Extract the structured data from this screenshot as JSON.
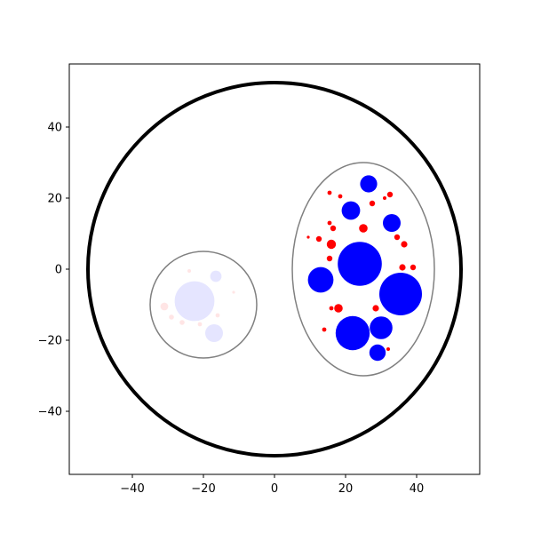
{
  "chart_data": {
    "type": "scatter",
    "title": "",
    "xlabel": "",
    "ylabel": "",
    "grid": false,
    "xlim": [
      -57.75,
      57.75
    ],
    "ylim": [
      -57.75,
      57.75
    ],
    "xticks": [
      -40,
      -20,
      0,
      20,
      40
    ],
    "yticks": [
      -40,
      -20,
      0,
      20,
      40
    ],
    "xtick_labels": [
      "−40",
      "−20",
      "0",
      "20",
      "40"
    ],
    "ytick_labels": [
      "−40",
      "−20",
      "0",
      "20",
      "40"
    ],
    "colors": {
      "blue": "#0000ff",
      "red": "#ff0000",
      "outer": "#000000",
      "cluster": "#808080"
    },
    "outer_circle": {
      "cx": 0,
      "cy": 0,
      "r": 52.5
    },
    "clusters": [
      {
        "cx": -20,
        "cy": -10,
        "rx": 15,
        "ry": 15,
        "faded": true
      },
      {
        "cx": 25,
        "cy": 0,
        "rx": 20,
        "ry": 30,
        "faded": false
      }
    ],
    "blue_points": [
      {
        "x": -22.5,
        "y": -9,
        "r": 5.6,
        "faded": true
      },
      {
        "x": -16.5,
        "y": -2,
        "r": 1.6,
        "faded": true
      },
      {
        "x": -17,
        "y": -18,
        "r": 2.5,
        "faded": true
      },
      {
        "x": 24,
        "y": 1.5,
        "r": 6.2,
        "faded": false
      },
      {
        "x": 35.5,
        "y": -7,
        "r": 6.0,
        "faded": false
      },
      {
        "x": 22,
        "y": -18,
        "r": 4.8,
        "faded": false
      },
      {
        "x": 13,
        "y": -3,
        "r": 3.6,
        "faded": false
      },
      {
        "x": 30,
        "y": -16.5,
        "r": 3.2,
        "faded": false
      },
      {
        "x": 21.5,
        "y": 16.5,
        "r": 2.6,
        "faded": false
      },
      {
        "x": 33,
        "y": 13,
        "r": 2.5,
        "faded": false
      },
      {
        "x": 26.5,
        "y": 24,
        "r": 2.4,
        "faded": false
      },
      {
        "x": 29,
        "y": -23.5,
        "r": 2.3,
        "faded": false
      }
    ],
    "red_points": [
      {
        "x": -24,
        "y": -0.5,
        "r": 0.5,
        "faded": true
      },
      {
        "x": -31,
        "y": -10.5,
        "r": 1.1,
        "faded": true
      },
      {
        "x": -29,
        "y": -13.5,
        "r": 0.7,
        "faded": true
      },
      {
        "x": -26,
        "y": -15,
        "r": 0.7,
        "faded": true
      },
      {
        "x": -21,
        "y": -15.5,
        "r": 0.6,
        "faded": true
      },
      {
        "x": -16,
        "y": -13,
        "r": 0.6,
        "faded": true
      },
      {
        "x": -11.5,
        "y": -6.5,
        "r": 0.4,
        "faded": true
      },
      {
        "x": 15.5,
        "y": 21.5,
        "r": 0.6,
        "faded": false
      },
      {
        "x": 18.5,
        "y": 20.5,
        "r": 0.6,
        "faded": false
      },
      {
        "x": 32.5,
        "y": 21,
        "r": 0.8,
        "faded": false
      },
      {
        "x": 31,
        "y": 20,
        "r": 0.5,
        "faded": false
      },
      {
        "x": 27.5,
        "y": 18.5,
        "r": 0.8,
        "faded": false
      },
      {
        "x": 15.5,
        "y": 13,
        "r": 0.6,
        "faded": false
      },
      {
        "x": 16.5,
        "y": 11.5,
        "r": 0.8,
        "faded": false
      },
      {
        "x": 25,
        "y": 11.5,
        "r": 1.2,
        "faded": false
      },
      {
        "x": 9.5,
        "y": 9,
        "r": 0.4,
        "faded": false
      },
      {
        "x": 12.5,
        "y": 8.5,
        "r": 0.8,
        "faded": false
      },
      {
        "x": 16,
        "y": 7,
        "r": 1.3,
        "faded": false
      },
      {
        "x": 34.5,
        "y": 9,
        "r": 0.8,
        "faded": false
      },
      {
        "x": 36.5,
        "y": 7,
        "r": 0.9,
        "faded": false
      },
      {
        "x": 15.5,
        "y": 3,
        "r": 0.8,
        "faded": false
      },
      {
        "x": 36,
        "y": 0.5,
        "r": 0.9,
        "faded": false
      },
      {
        "x": 39,
        "y": 0.5,
        "r": 0.8,
        "faded": false
      },
      {
        "x": 16,
        "y": -11,
        "r": 0.6,
        "faded": false
      },
      {
        "x": 18,
        "y": -11,
        "r": 1.2,
        "faded": false
      },
      {
        "x": 28.5,
        "y": -11,
        "r": 0.9,
        "faded": false
      },
      {
        "x": 14,
        "y": -17,
        "r": 0.6,
        "faded": false
      },
      {
        "x": 32,
        "y": -22.5,
        "r": 0.5,
        "faded": false
      }
    ]
  }
}
